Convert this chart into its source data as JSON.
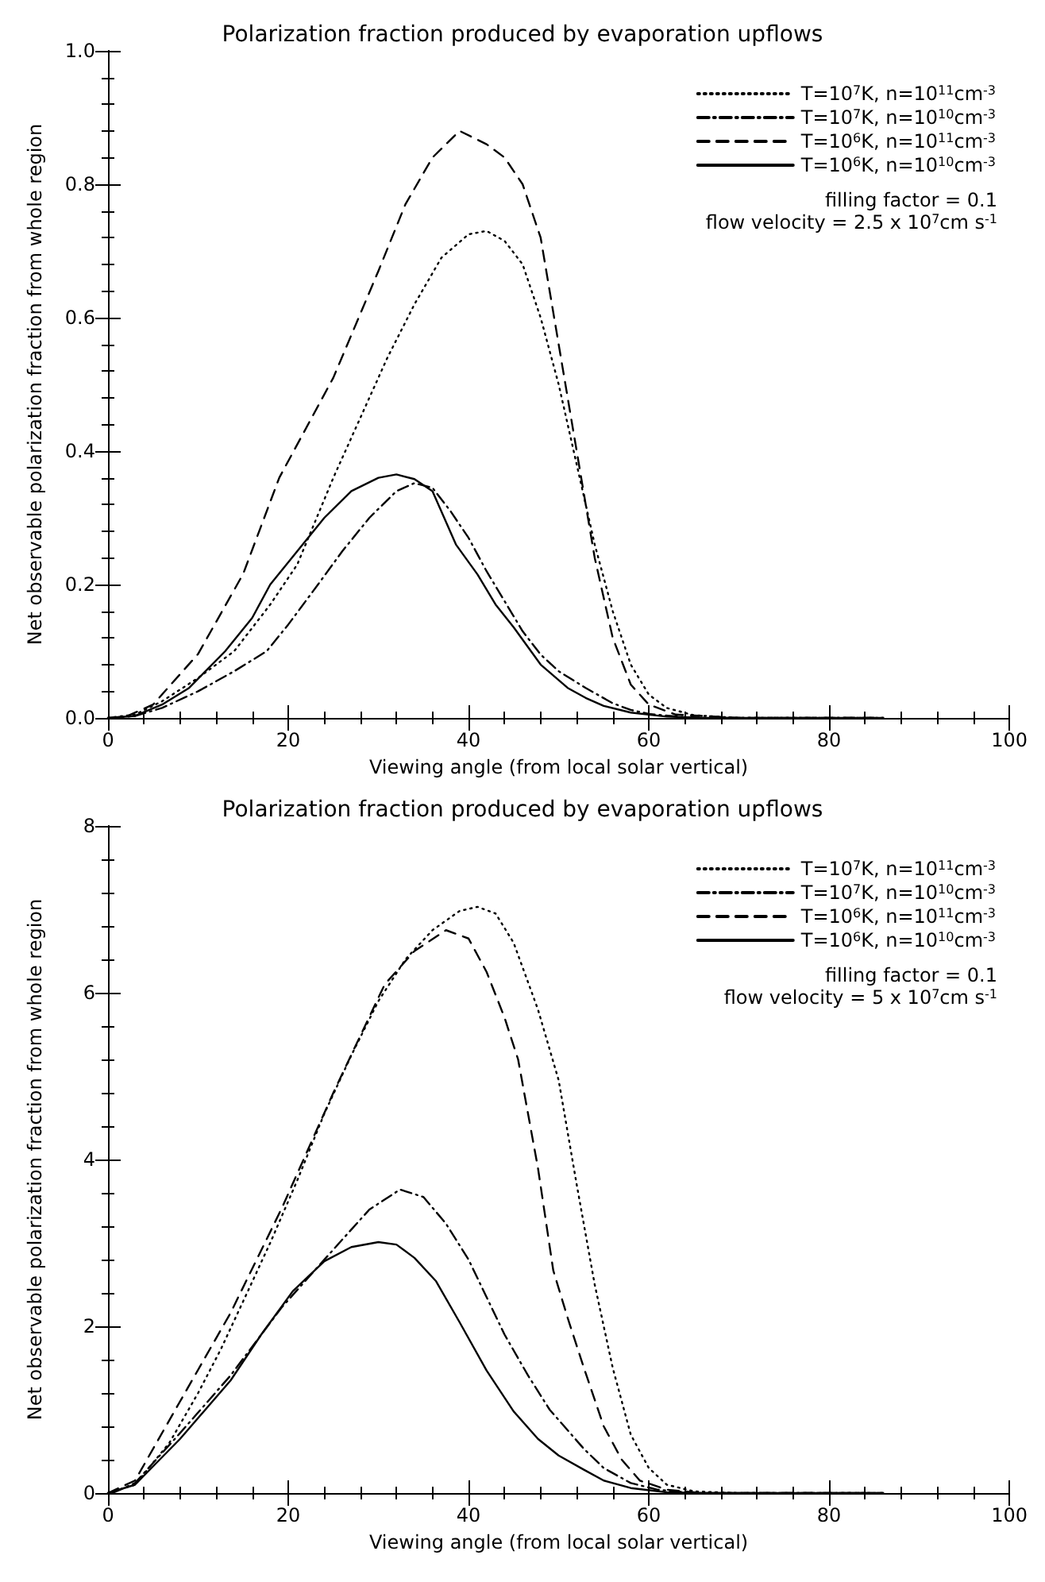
{
  "chart_data": [
    {
      "type": "line",
      "title": "Polarization fraction produced by evaporation upflows",
      "xlabel": "Viewing angle (from local solar vertical)",
      "ylabel": "Net observable polarization fraction from whole region",
      "xlim": [
        0,
        100
      ],
      "xticks": [
        0,
        20,
        40,
        60,
        80,
        100
      ],
      "ylim": [
        0,
        1
      ],
      "yticks": [
        {
          "value": 0,
          "label": "0.0"
        },
        0.2,
        0.4,
        0.6,
        0.8,
        {
          "value": 1,
          "label": "1.0"
        }
      ],
      "grid": false,
      "legend": "top right",
      "marker": "none",
      "annotations": [
        "filling factor = 0.1",
        "flow velocity = 2.5 x 10$^{7}$cm s$^{-1}$"
      ],
      "series": [
        {
          "name": "T=10$^{7}$K, n=10$^{11}$cm$^{-3}$",
          "color": "#000000",
          "line_style": "dotted",
          "x": [
            0,
            3,
            6,
            10,
            14,
            18,
            21,
            25,
            28,
            31,
            34,
            37,
            40,
            42,
            44,
            46,
            48,
            50,
            52,
            54,
            56,
            58,
            60,
            62,
            65,
            70,
            86
          ],
          "values": [
            0,
            0.005,
            0.025,
            0.06,
            0.1,
            0.17,
            0.23,
            0.36,
            0.45,
            0.54,
            0.62,
            0.69,
            0.725,
            0.73,
            0.715,
            0.68,
            0.6,
            0.5,
            0.38,
            0.26,
            0.16,
            0.08,
            0.035,
            0.015,
            0.004,
            0,
            0
          ]
        },
        {
          "name": "T=10$^{7}$K, n=10$^{10}$cm$^{-3}$",
          "color": "#000000",
          "line_style": "dashdot",
          "x": [
            0.5,
            3,
            6,
            10,
            14,
            17.6,
            20,
            23.3,
            26,
            29,
            32,
            34,
            36,
            38,
            40,
            42,
            44,
            46,
            48,
            50,
            53,
            56,
            58,
            60,
            64,
            68,
            85
          ],
          "values": [
            0,
            0.003,
            0.015,
            0.04,
            0.07,
            0.1,
            0.14,
            0.2,
            0.25,
            0.3,
            0.34,
            0.352,
            0.345,
            0.31,
            0.27,
            0.22,
            0.175,
            0.13,
            0.095,
            0.07,
            0.045,
            0.022,
            0.012,
            0.006,
            0.001,
            0,
            0
          ]
        },
        {
          "name": "T=10$^{6}$K, n=10$^{11}$cm$^{-3}$",
          "color": "#000000",
          "line_style": "dashed",
          "x": [
            0,
            2,
            5,
            10,
            15,
            19,
            25,
            30,
            33,
            36,
            39,
            42,
            44,
            46,
            48,
            50,
            52,
            54,
            56,
            58,
            60,
            63,
            70,
            86
          ],
          "values": [
            0,
            0.002,
            0.02,
            0.096,
            0.216,
            0.36,
            0.51,
            0.67,
            0.77,
            0.84,
            0.88,
            0.86,
            0.84,
            0.8,
            0.72,
            0.56,
            0.4,
            0.24,
            0.12,
            0.05,
            0.02,
            0.005,
            0,
            0
          ]
        },
        {
          "name": "T=10$^{6}$K, n=10$^{10}$cm$^{-3}$",
          "color": "#000000",
          "line_style": "solid",
          "x": [
            0,
            3,
            6,
            9,
            13,
            16,
            18,
            21,
            24,
            27,
            30,
            32,
            34,
            36,
            38.6,
            41,
            43,
            45,
            48,
            51,
            53,
            55,
            58,
            62,
            66,
            86
          ],
          "values": [
            0,
            0.003,
            0.02,
            0.045,
            0.1,
            0.15,
            0.2,
            0.25,
            0.3,
            0.34,
            0.36,
            0.365,
            0.358,
            0.34,
            0.26,
            0.215,
            0.17,
            0.136,
            0.08,
            0.045,
            0.03,
            0.018,
            0.008,
            0.002,
            0,
            0
          ]
        }
      ]
    },
    {
      "type": "line",
      "title": "Polarization fraction produced by evaporation upflows",
      "xlabel": "Viewing angle (from local solar vertical)",
      "ylabel": "Net observable polarization fraction from whole region",
      "xlim": [
        0,
        100
      ],
      "xticks": [
        0,
        20,
        40,
        60,
        80,
        100
      ],
      "ylim": [
        0,
        8
      ],
      "yticks": [
        0,
        2,
        4,
        6,
        8
      ],
      "grid": false,
      "legend": "top right",
      "marker": "none",
      "annotations": [
        "filling factor = 0.1",
        "flow velocity = 5 x 10$^{7}$cm s$^{-1}$"
      ],
      "series": [
        {
          "name": "T=10$^{7}$K, n=10$^{11}$cm$^{-3}$",
          "color": "#000000",
          "line_style": "dotted",
          "x": [
            0,
            3,
            6.8,
            10,
            12.5,
            15,
            18,
            21,
            24,
            27,
            30,
            33,
            36,
            39,
            41,
            43,
            45,
            47.7,
            50,
            52,
            54,
            56,
            58,
            60,
            62,
            65,
            70,
            86
          ],
          "values": [
            0,
            0.1,
            0.6,
            1.2,
            1.72,
            2.3,
            3.0,
            3.75,
            4.55,
            5.25,
            5.9,
            6.4,
            6.75,
            6.98,
            7.03,
            6.95,
            6.6,
            5.8,
            4.95,
            3.7,
            2.5,
            1.5,
            0.7,
            0.3,
            0.1,
            0.02,
            0,
            0
          ]
        },
        {
          "name": "T=10$^{7}$K, n=10$^{10}$cm$^{-3}$",
          "color": "#000000",
          "line_style": "dashdot",
          "x": [
            0.5,
            3,
            8,
            13.6,
            19.3,
            25,
            29,
            32.4,
            35,
            37.5,
            40,
            42,
            44,
            46.6,
            49,
            52.8,
            55,
            58,
            61,
            65,
            85
          ],
          "values": [
            0,
            0.12,
            0.72,
            1.41,
            2.23,
            2.92,
            3.4,
            3.64,
            3.55,
            3.23,
            2.8,
            2.35,
            1.9,
            1.41,
            1.0,
            0.53,
            0.3,
            0.12,
            0.04,
            0,
            0
          ]
        },
        {
          "name": "T=10$^{6}$K, n=10$^{11}$cm$^{-3}$",
          "color": "#000000",
          "line_style": "dashed",
          "x": [
            0,
            3,
            8,
            13.6,
            19.3,
            25,
            30.7,
            34,
            37.5,
            40,
            42,
            44,
            45.5,
            47.7,
            49.4,
            51,
            52.8,
            55,
            57,
            59,
            62,
            66,
            86
          ],
          "values": [
            0,
            0.15,
            1.1,
            2.16,
            3.42,
            4.8,
            6.1,
            6.5,
            6.75,
            6.65,
            6.25,
            5.7,
            5.2,
            3.9,
            2.67,
            2.1,
            1.5,
            0.8,
            0.4,
            0.15,
            0.04,
            0,
            0
          ]
        },
        {
          "name": "T=10$^{6}$K, n=10$^{10}$cm$^{-3}$",
          "color": "#000000",
          "line_style": "solid",
          "x": [
            0,
            3,
            8,
            13.6,
            17,
            20.5,
            24,
            27,
            30,
            32,
            34,
            36.4,
            39,
            42,
            45,
            47.7,
            50,
            52.8,
            55,
            58,
            62,
            66,
            86
          ],
          "values": [
            0,
            0.1,
            0.65,
            1.35,
            1.9,
            2.42,
            2.78,
            2.95,
            3.01,
            2.98,
            2.82,
            2.54,
            2.05,
            1.47,
            0.98,
            0.65,
            0.45,
            0.28,
            0.15,
            0.06,
            0.01,
            0,
            0
          ]
        }
      ]
    }
  ]
}
